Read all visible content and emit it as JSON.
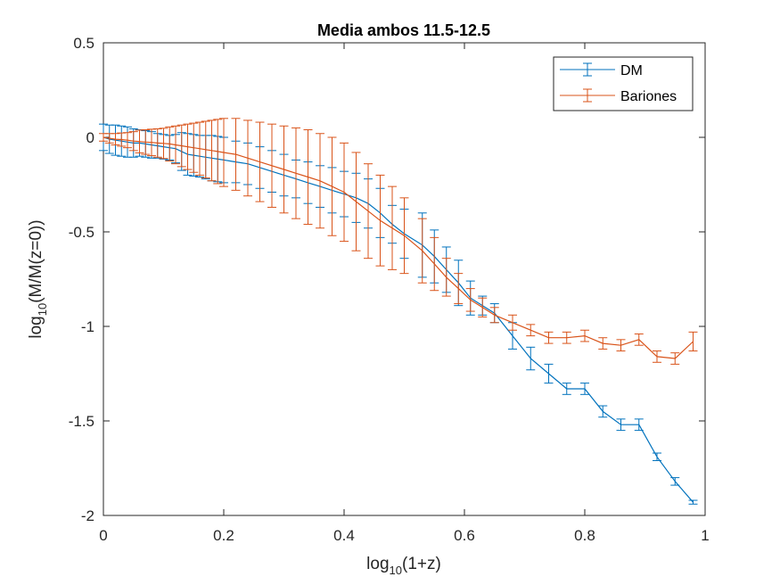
{
  "chart_data": {
    "type": "line",
    "title": "Media ambos 11.5-12.5",
    "xlabel": {
      "prefix": "log",
      "sub": "10",
      "suffix": "(1+z)"
    },
    "ylabel": {
      "prefix": "log",
      "sub": "10",
      "suffix": "(M/M(z=0))"
    },
    "xlim": [
      0,
      1
    ],
    "ylim": [
      -2,
      0.5
    ],
    "xticks": [
      0,
      0.2,
      0.4,
      0.6,
      0.8,
      1
    ],
    "xtick_labels": [
      "0",
      "0.2",
      "0.4",
      "0.6",
      "0.8",
      "1"
    ],
    "yticks": [
      -2,
      -1.5,
      -1,
      -0.5,
      0,
      0.5
    ],
    "ytick_labels": [
      "-2",
      "-1.5",
      "-1",
      "-0.5",
      "0",
      "0.5"
    ],
    "grid": false,
    "legend_position": "top-right",
    "series": [
      {
        "name": "DM",
        "color": "#0072BD",
        "x": [
          0,
          0.01,
          0.02,
          0.03,
          0.04,
          0.05,
          0.06,
          0.07,
          0.08,
          0.09,
          0.1,
          0.11,
          0.12,
          0.13,
          0.14,
          0.15,
          0.16,
          0.17,
          0.18,
          0.19,
          0.2,
          0.22,
          0.24,
          0.26,
          0.28,
          0.3,
          0.32,
          0.34,
          0.36,
          0.38,
          0.4,
          0.42,
          0.44,
          0.46,
          0.48,
          0.5,
          0.53,
          0.55,
          0.57,
          0.59,
          0.61,
          0.63,
          0.65,
          0.68,
          0.71,
          0.74,
          0.77,
          0.8,
          0.83,
          0.86,
          0.89,
          0.92,
          0.95,
          0.98
        ],
        "y": [
          0,
          -0.01,
          -0.015,
          -0.02,
          -0.025,
          -0.03,
          -0.03,
          -0.035,
          -0.04,
          -0.045,
          -0.05,
          -0.055,
          -0.06,
          -0.075,
          -0.09,
          -0.095,
          -0.1,
          -0.105,
          -0.11,
          -0.115,
          -0.12,
          -0.13,
          -0.14,
          -0.16,
          -0.18,
          -0.2,
          -0.22,
          -0.24,
          -0.26,
          -0.28,
          -0.3,
          -0.32,
          -0.35,
          -0.4,
          -0.46,
          -0.51,
          -0.57,
          -0.63,
          -0.7,
          -0.77,
          -0.85,
          -0.89,
          -0.93,
          -1.05,
          -1.17,
          -1.25,
          -1.33,
          -1.33,
          -1.45,
          -1.52,
          -1.52,
          -1.69,
          -1.82,
          -1.93
        ],
        "err": [
          0.07,
          0.075,
          0.08,
          0.08,
          0.08,
          0.075,
          0.07,
          0.07,
          0.07,
          0.065,
          0.065,
          0.065,
          0.075,
          0.1,
          0.11,
          0.11,
          0.11,
          0.115,
          0.12,
          0.12,
          0.12,
          0.11,
          0.11,
          0.11,
          0.11,
          0.11,
          0.1,
          0.11,
          0.11,
          0.12,
          0.12,
          0.13,
          0.13,
          0.13,
          0.1,
          0.13,
          0.17,
          0.14,
          0.12,
          0.12,
          0.09,
          0.05,
          0.05,
          0.07,
          0.06,
          0.05,
          0.03,
          0.03,
          0.03,
          0.03,
          0.03,
          0.02,
          0.02,
          0.01
        ]
      },
      {
        "name": "Bariones",
        "color": "#D95319",
        "x": [
          0,
          0.01,
          0.02,
          0.03,
          0.04,
          0.05,
          0.06,
          0.07,
          0.08,
          0.09,
          0.1,
          0.11,
          0.12,
          0.13,
          0.14,
          0.15,
          0.16,
          0.17,
          0.18,
          0.19,
          0.2,
          0.22,
          0.24,
          0.26,
          0.28,
          0.3,
          0.32,
          0.34,
          0.36,
          0.38,
          0.4,
          0.42,
          0.44,
          0.46,
          0.48,
          0.5,
          0.53,
          0.55,
          0.57,
          0.59,
          0.61,
          0.63,
          0.65,
          0.68,
          0.71,
          0.74,
          0.77,
          0.8,
          0.83,
          0.86,
          0.89,
          0.92,
          0.95,
          0.98
        ],
        "y": [
          0,
          -0.005,
          -0.01,
          -0.012,
          -0.015,
          -0.02,
          -0.022,
          -0.025,
          -0.027,
          -0.03,
          -0.032,
          -0.035,
          -0.04,
          -0.045,
          -0.05,
          -0.055,
          -0.06,
          -0.065,
          -0.07,
          -0.075,
          -0.08,
          -0.09,
          -0.11,
          -0.13,
          -0.15,
          -0.17,
          -0.19,
          -0.21,
          -0.23,
          -0.26,
          -0.29,
          -0.34,
          -0.39,
          -0.44,
          -0.48,
          -0.52,
          -0.6,
          -0.67,
          -0.74,
          -0.8,
          -0.86,
          -0.9,
          -0.94,
          -0.98,
          -1.02,
          -1.06,
          -1.06,
          -1.05,
          -1.09,
          -1.1,
          -1.07,
          -1.16,
          -1.17,
          -1.08
        ],
        "err": [
          0.02,
          0.025,
          0.03,
          0.035,
          0.04,
          0.05,
          0.06,
          0.065,
          0.07,
          0.075,
          0.08,
          0.09,
          0.1,
          0.11,
          0.12,
          0.13,
          0.14,
          0.15,
          0.16,
          0.17,
          0.18,
          0.19,
          0.2,
          0.21,
          0.22,
          0.23,
          0.24,
          0.25,
          0.25,
          0.26,
          0.26,
          0.26,
          0.25,
          0.24,
          0.22,
          0.2,
          0.17,
          0.14,
          0.1,
          0.08,
          0.06,
          0.05,
          0.04,
          0.04,
          0.03,
          0.03,
          0.03,
          0.03,
          0.03,
          0.03,
          0.03,
          0.03,
          0.03,
          0.05
        ]
      }
    ]
  }
}
